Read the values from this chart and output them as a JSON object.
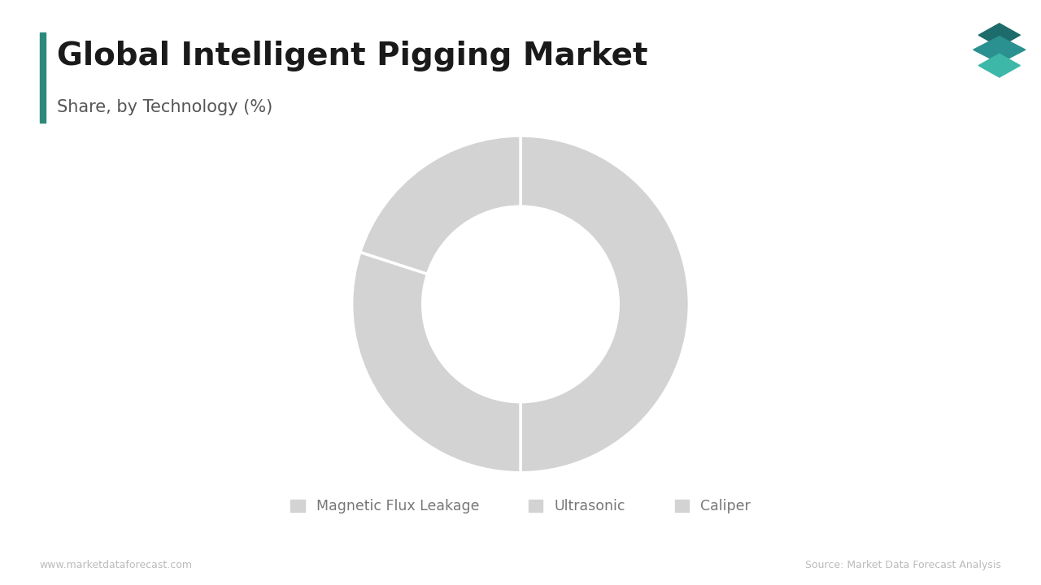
{
  "title": "Global Intelligent Pigging Market",
  "subtitle": "Share, by Technology (%)",
  "segments": [
    "Magnetic Flux Leakage",
    "Ultrasonic",
    "Caliper"
  ],
  "values": [
    50,
    30,
    20
  ],
  "wedge_color": "#d3d3d3",
  "background_color": "#ffffff",
  "title_color": "#1a1a1a",
  "subtitle_color": "#555555",
  "legend_color": "#777777",
  "footer_left": "www.marketdataforecast.com",
  "footer_right": "Source: Market Data Forecast Analysis",
  "title_bar_color": "#2d8a7a",
  "donut_hole": 0.58,
  "startangle": 90
}
